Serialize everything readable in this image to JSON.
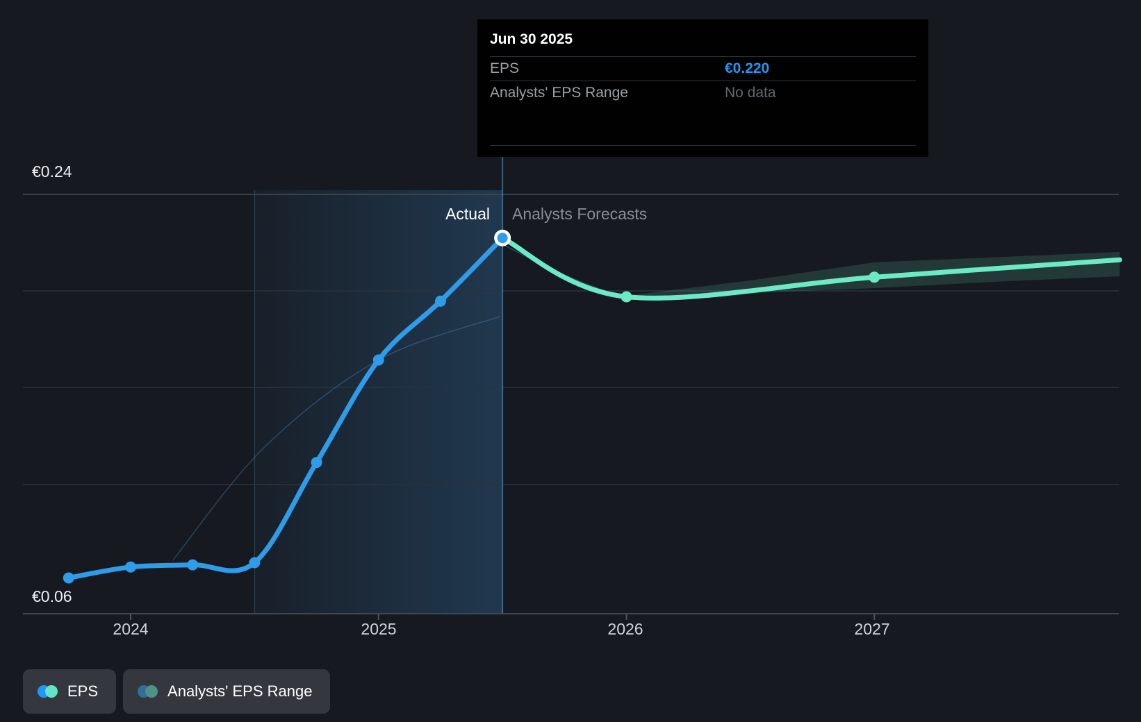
{
  "tooltip": {
    "date": "Jun 30 2025",
    "rows": [
      {
        "label": "EPS",
        "value": "€0.220"
      },
      {
        "label": "Analysts' EPS Range",
        "value": "No data"
      }
    ]
  },
  "labels": {
    "actual": "Actual",
    "forecast": "Analysts Forecasts",
    "y_max": "€0.24",
    "y_min": "€0.06"
  },
  "x_axis": {
    "ticks": [
      "2024",
      "2025",
      "2026",
      "2027"
    ]
  },
  "legend": [
    {
      "label": "EPS",
      "colors": [
        "#2196f3",
        "#64e3c8"
      ]
    },
    {
      "label": "Analysts' EPS Range",
      "colors": [
        "#2f6f9e",
        "#4f9187"
      ]
    }
  ],
  "colors": {
    "background": "#161a20",
    "tooltip_bg": "#010101",
    "eps_value_blue": "#2196f3",
    "actual_line": "#2e9ce8",
    "forecast_line": "#6ceac6",
    "range_band": "rgba(108,233,197,0.15)",
    "gridline": "#2b323c",
    "gridline_top": "#454c55",
    "axis_line": "#3f474f",
    "divider_line": "rgba(96,165,224,0.5)",
    "highlight_from": "rgba(62,143,212,0.05)",
    "highlight_to": "rgba(62,143,212,0.26)",
    "reference_curve": "rgba(80,150,210,0.35)"
  },
  "chart_data": {
    "type": "line",
    "currency": "EUR",
    "ylabel_max": "€0.24",
    "ylabel_min": "€0.06",
    "ylim": [
      0.06,
      0.24
    ],
    "xlim_years": [
      2023.6,
      2028.0
    ],
    "divider_x": 2025.5,
    "divider_date": "Jun 30 2025",
    "highlight_range": [
      2024.5,
      2025.5
    ],
    "series": [
      {
        "name": "EPS (actual)",
        "dates": [
          "Sep 30 2023",
          "Dec 31 2023",
          "Mar 31 2024",
          "Jun 30 2024",
          "Sep 30 2024",
          "Dec 31 2024",
          "Mar 31 2025",
          "Jun 30 2025"
        ],
        "x": [
          2023.75,
          2024.0,
          2024.25,
          2024.5,
          2024.75,
          2025.0,
          2025.25,
          2025.5
        ],
        "y": [
          0.064,
          0.069,
          0.07,
          0.071,
          0.117,
          0.164,
          0.191,
          0.22
        ]
      },
      {
        "name": "EPS (analysts forecast)",
        "dates": [
          "Jun 30 2025",
          "Dec 31 2025",
          "Dec 31 2026",
          "Dec 31 2027"
        ],
        "x": [
          2025.5,
          2026.0,
          2027.0,
          2027.99
        ],
        "y": [
          0.22,
          0.193,
          0.202,
          0.21
        ]
      }
    ],
    "range_band": {
      "name": "Analysts' EPS Range",
      "x": [
        2026.0,
        2026.5,
        2027.0,
        2027.5,
        2027.99
      ],
      "top": [
        0.1935,
        0.2005,
        0.2088,
        0.2112,
        0.2136
      ],
      "bottom": [
        0.1928,
        0.1948,
        0.197,
        0.2,
        0.2024
      ]
    },
    "reference_curves": [
      {
        "x": [
          2024.17,
          2024.54,
          2025.0,
          2025.49
        ],
        "y": [
          0.072,
          0.124,
          0.164,
          0.184
        ]
      },
      {
        "x": [
          2025.5,
          2025.75,
          2025.99
        ],
        "y": [
          0.217,
          0.203,
          0.1925
        ]
      }
    ],
    "legend_position": "bottom-left",
    "grid": "horizontal-only"
  }
}
